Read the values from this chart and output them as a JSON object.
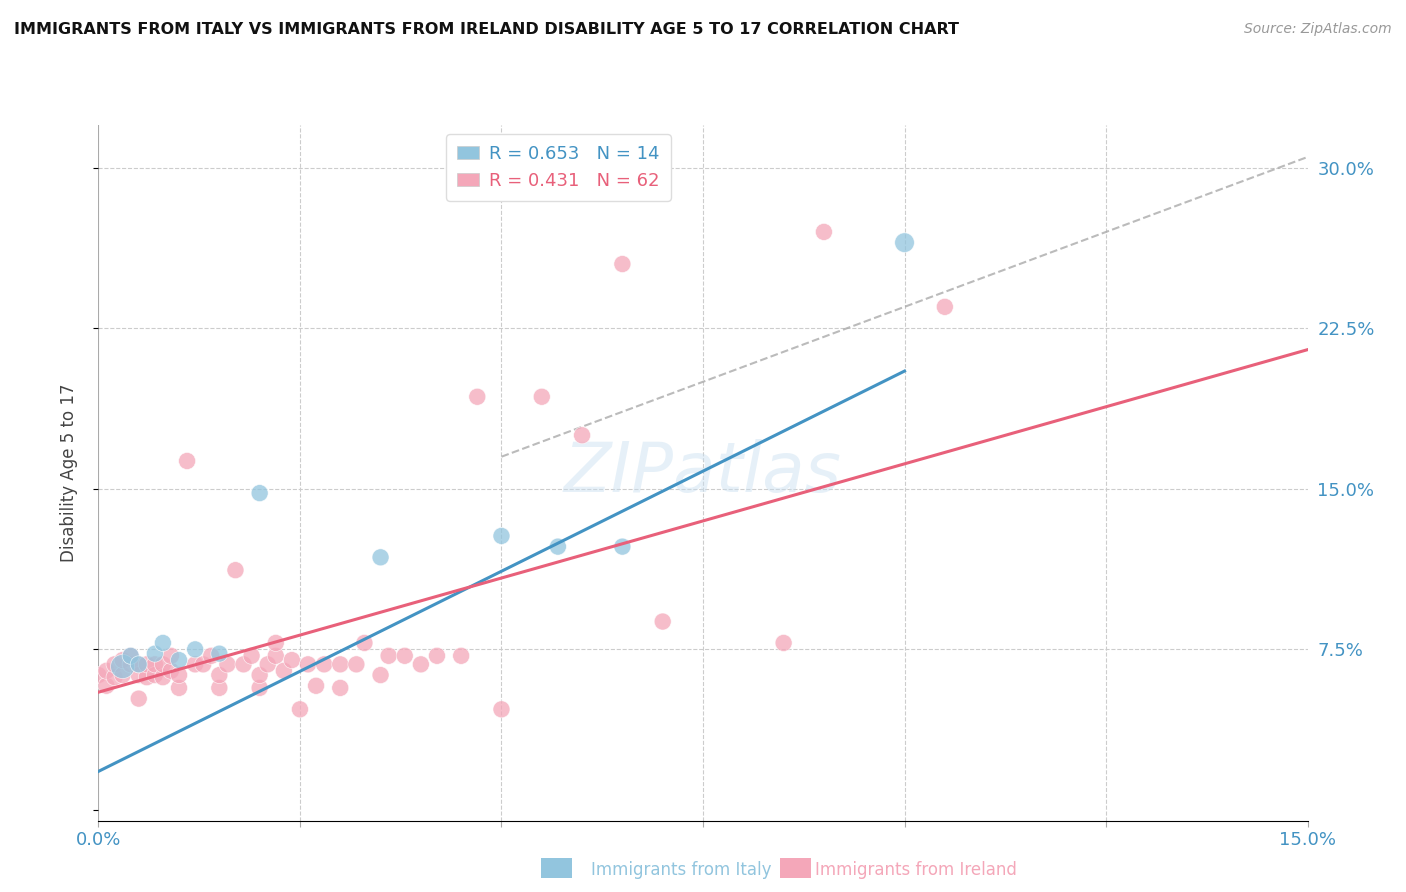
{
  "title": "IMMIGRANTS FROM ITALY VS IMMIGRANTS FROM IRELAND DISABILITY AGE 5 TO 17 CORRELATION CHART",
  "source": "Source: ZipAtlas.com",
  "ylabel": "Disability Age 5 to 17",
  "italy_color": "#92c5de",
  "ireland_color": "#f4a7b9",
  "italy_line_color": "#4393c3",
  "ireland_line_color": "#e8607a",
  "watermark": "ZIPatlas",
  "legend_italy_r": "R = 0.653",
  "legend_italy_n": "N = 14",
  "legend_ireland_r": "R = 0.431",
  "legend_ireland_n": "N = 62",
  "xlim": [
    0.0,
    0.15
  ],
  "ylim": [
    -0.005,
    0.32
  ],
  "italy_scatter_x": [
    0.003,
    0.004,
    0.005,
    0.007,
    0.008,
    0.01,
    0.012,
    0.015,
    0.02,
    0.035,
    0.05,
    0.057,
    0.065,
    0.1
  ],
  "italy_scatter_y": [
    0.067,
    0.072,
    0.068,
    0.073,
    0.078,
    0.07,
    0.075,
    0.073,
    0.148,
    0.118,
    0.128,
    0.123,
    0.123,
    0.265
  ],
  "italy_scatter_size": [
    300,
    150,
    150,
    150,
    150,
    150,
    150,
    150,
    150,
    150,
    150,
    150,
    150,
    200
  ],
  "ireland_scatter_x": [
    0.0,
    0.001,
    0.001,
    0.002,
    0.002,
    0.003,
    0.003,
    0.004,
    0.004,
    0.005,
    0.005,
    0.005,
    0.006,
    0.006,
    0.007,
    0.007,
    0.008,
    0.008,
    0.009,
    0.009,
    0.01,
    0.01,
    0.011,
    0.012,
    0.013,
    0.014,
    0.015,
    0.015,
    0.016,
    0.017,
    0.018,
    0.019,
    0.02,
    0.02,
    0.021,
    0.022,
    0.022,
    0.023,
    0.024,
    0.025,
    0.026,
    0.027,
    0.028,
    0.03,
    0.03,
    0.032,
    0.033,
    0.035,
    0.036,
    0.038,
    0.04,
    0.042,
    0.045,
    0.047,
    0.05,
    0.055,
    0.06,
    0.065,
    0.07,
    0.085,
    0.09,
    0.105
  ],
  "ireland_scatter_y": [
    0.063,
    0.058,
    0.065,
    0.062,
    0.068,
    0.063,
    0.07,
    0.068,
    0.072,
    0.052,
    0.063,
    0.068,
    0.062,
    0.068,
    0.063,
    0.068,
    0.062,
    0.068,
    0.065,
    0.072,
    0.057,
    0.063,
    0.163,
    0.068,
    0.068,
    0.072,
    0.057,
    0.063,
    0.068,
    0.112,
    0.068,
    0.072,
    0.057,
    0.063,
    0.068,
    0.072,
    0.078,
    0.065,
    0.07,
    0.047,
    0.068,
    0.058,
    0.068,
    0.057,
    0.068,
    0.068,
    0.078,
    0.063,
    0.072,
    0.072,
    0.068,
    0.072,
    0.072,
    0.193,
    0.047,
    0.193,
    0.175,
    0.255,
    0.088,
    0.078,
    0.27,
    0.235
  ],
  "ireland_scatter_size": [
    150,
    150,
    150,
    150,
    150,
    150,
    150,
    150,
    150,
    150,
    150,
    150,
    150,
    150,
    150,
    150,
    150,
    150,
    150,
    150,
    150,
    150,
    150,
    150,
    150,
    150,
    150,
    150,
    150,
    150,
    150,
    150,
    150,
    150,
    150,
    150,
    150,
    150,
    150,
    150,
    150,
    150,
    150,
    150,
    150,
    150,
    150,
    150,
    150,
    150,
    150,
    150,
    150,
    150,
    150,
    150,
    150,
    150,
    150,
    150,
    150,
    150
  ],
  "italy_line_x": [
    0.0,
    0.1
  ],
  "italy_line_y": [
    0.018,
    0.205
  ],
  "ireland_line_x": [
    0.0,
    0.15
  ],
  "ireland_line_y": [
    0.055,
    0.215
  ],
  "dashed_line_x": [
    0.05,
    0.15
  ],
  "dashed_line_y": [
    0.165,
    0.305
  ],
  "yticks": [
    0.0,
    0.075,
    0.15,
    0.225,
    0.3
  ],
  "ytick_labels": [
    "",
    "7.5%",
    "15.0%",
    "22.5%",
    "30.0%"
  ],
  "xticks": [
    0.0,
    0.025,
    0.05,
    0.075,
    0.1,
    0.125,
    0.15
  ],
  "xtick_labels": [
    "0.0%",
    "",
    "",
    "",
    "",
    "",
    "15.0%"
  ]
}
